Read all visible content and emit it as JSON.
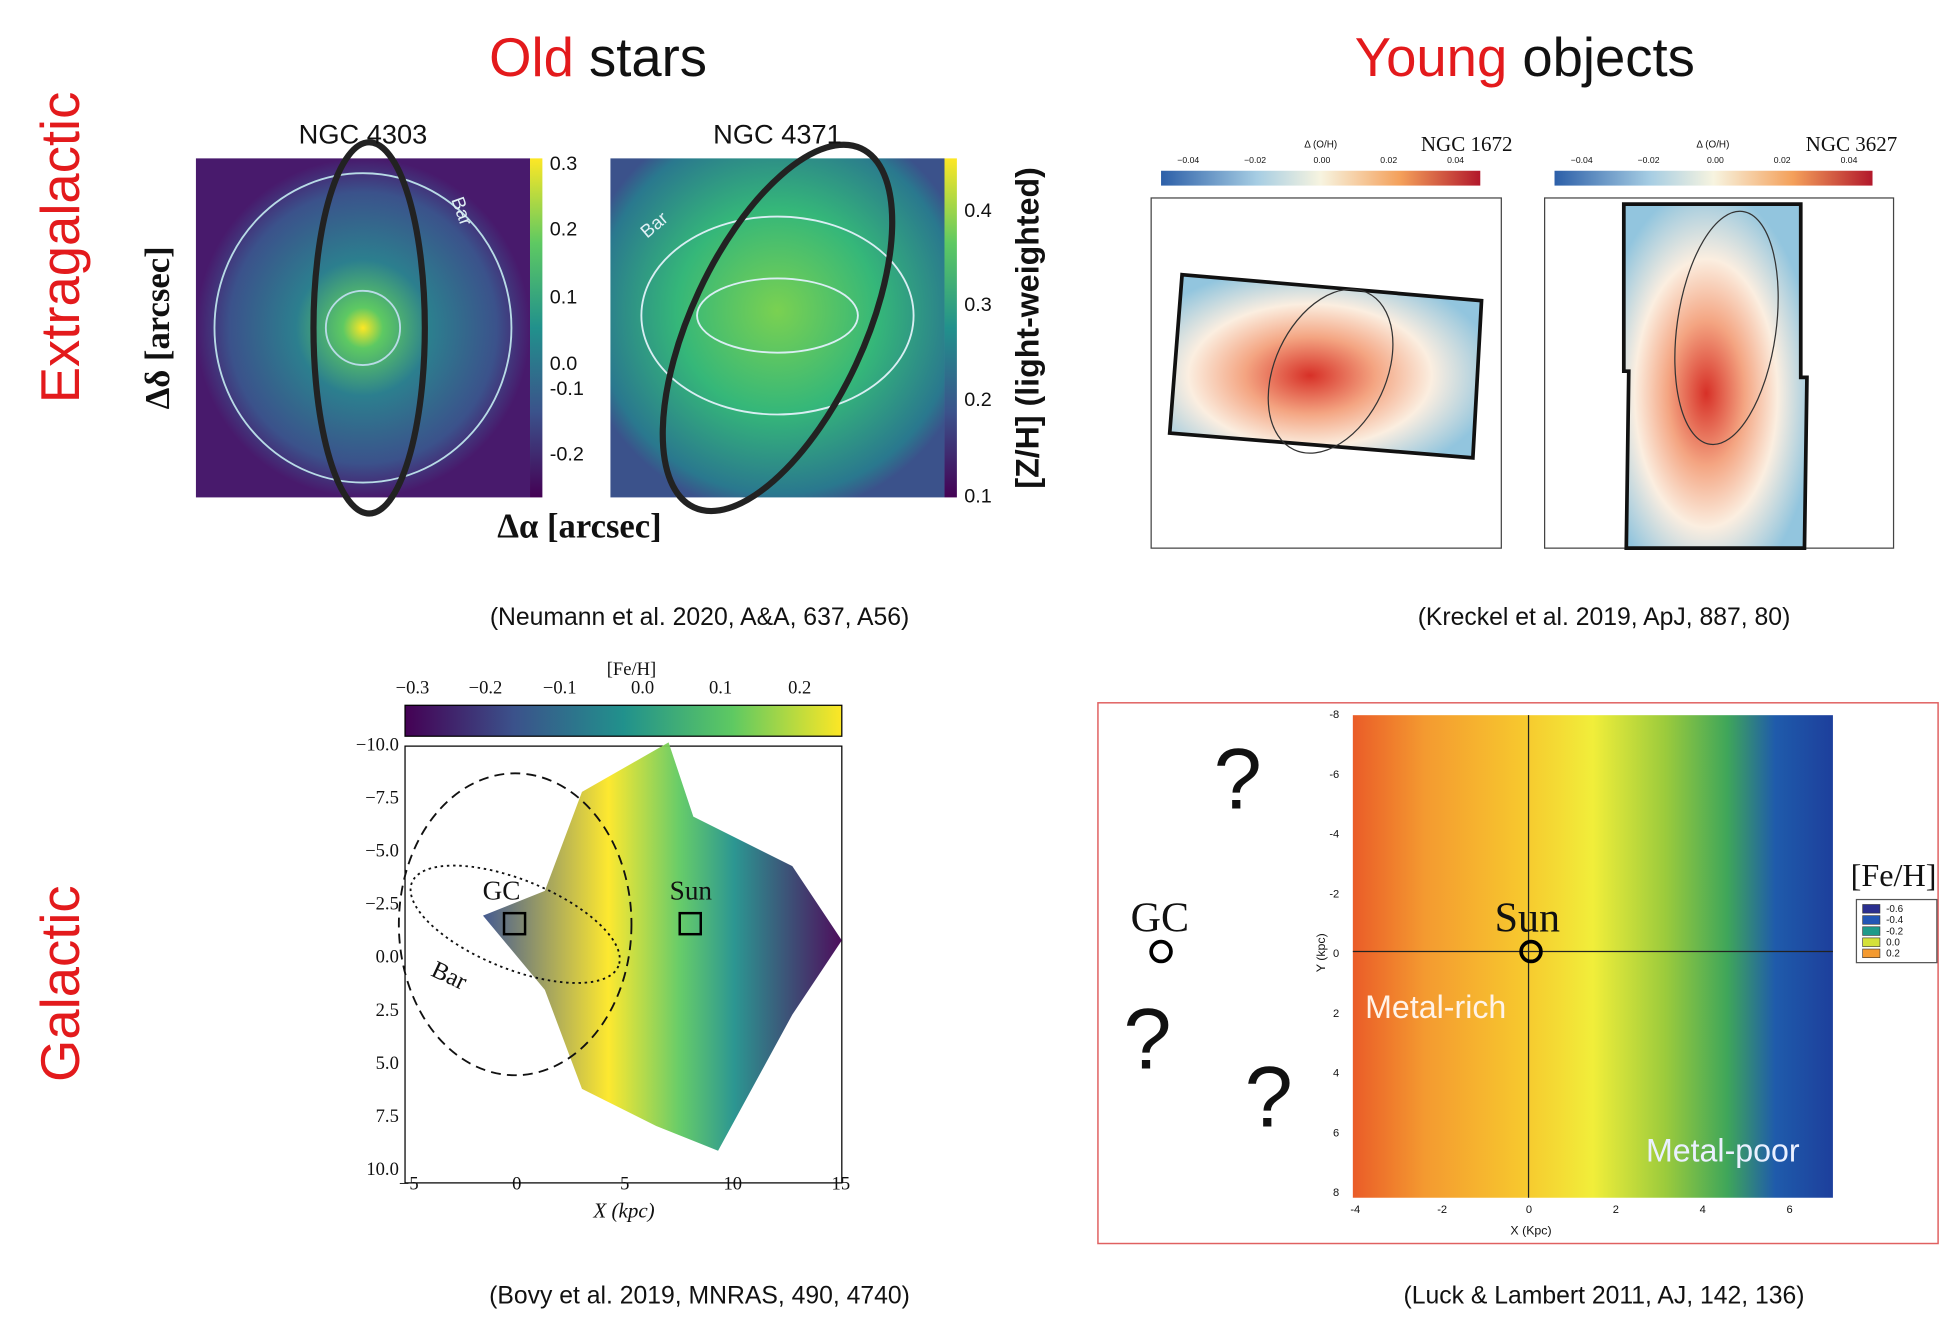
{
  "headers": [
    {
      "highlight": "Old",
      "rest": "stars"
    },
    {
      "highlight": "Young",
      "rest": "objects"
    }
  ],
  "rows": [
    "Extragalactic",
    "Galactic"
  ],
  "neumann": {
    "titles": [
      "NGC 4303",
      "NGC 4371"
    ],
    "bar_label": "Bar",
    "cbar1_ticks": [
      "0.3",
      "0.2",
      "0.1",
      "0.0",
      "-0.1",
      "-0.2"
    ],
    "cbar2_ticks": [
      "0.4",
      "0.3",
      "0.2",
      "0.1"
    ],
    "xlabel": "Δα [arcsec]",
    "ylabel": "Δδ [arcsec]",
    "cbar_label": "[Z/H] (light-weighted)",
    "citation": "(Neumann et al. 2020, A&A, 637, A56)"
  },
  "kreckel": {
    "maps": [
      {
        "name": "NGC 1672"
      },
      {
        "name": "NGC 3627"
      }
    ],
    "cbar_label": "Δ (O/H)",
    "cbar_ticks": [
      "−0.04",
      "−0.02",
      "0.00",
      "0.02",
      "0.04"
    ],
    "citation": "(Kreckel et al. 2019, ApJ, 887, 80)"
  },
  "bovy": {
    "cbar_label": "[Fe/H]",
    "cbar_ticks": [
      "−0.3",
      "−0.2",
      "−0.1",
      "0.0",
      "0.1",
      "0.2"
    ],
    "yticks": [
      "−10.0",
      "−7.5",
      "−5.0",
      "−2.5",
      "0.0",
      "2.5",
      "5.0",
      "7.5",
      "10.0"
    ],
    "xticks": [
      "−5",
      "0",
      "5",
      "10",
      "15"
    ],
    "xlabel": "X (kpc)",
    "gc_label": "GC",
    "sun_label": "Sun",
    "bar_label": "Bar",
    "citation": "(Bovy et al. 2019, MNRAS, 490, 4740)"
  },
  "luck": {
    "yticks": [
      "-8",
      "-6",
      "-4",
      "-2",
      "0",
      "2",
      "4",
      "6",
      "8"
    ],
    "xticks": [
      "-4",
      "-2",
      "0",
      "2",
      "4",
      "6"
    ],
    "xlabel": "X (Kpc)",
    "ylabel": "Y (kpc)",
    "legend_title": "[Fe/H]",
    "legend": [
      "-0.6",
      "-0.4",
      "-0.2",
      "0.0",
      "0.2"
    ],
    "gc_label": "GC",
    "sun_label": "Sun",
    "rich_label": "Metal-rich",
    "poor_label": "Metal-poor",
    "question": "?",
    "citation": "(Luck & Lambert 2011, AJ, 142, 136)"
  }
}
